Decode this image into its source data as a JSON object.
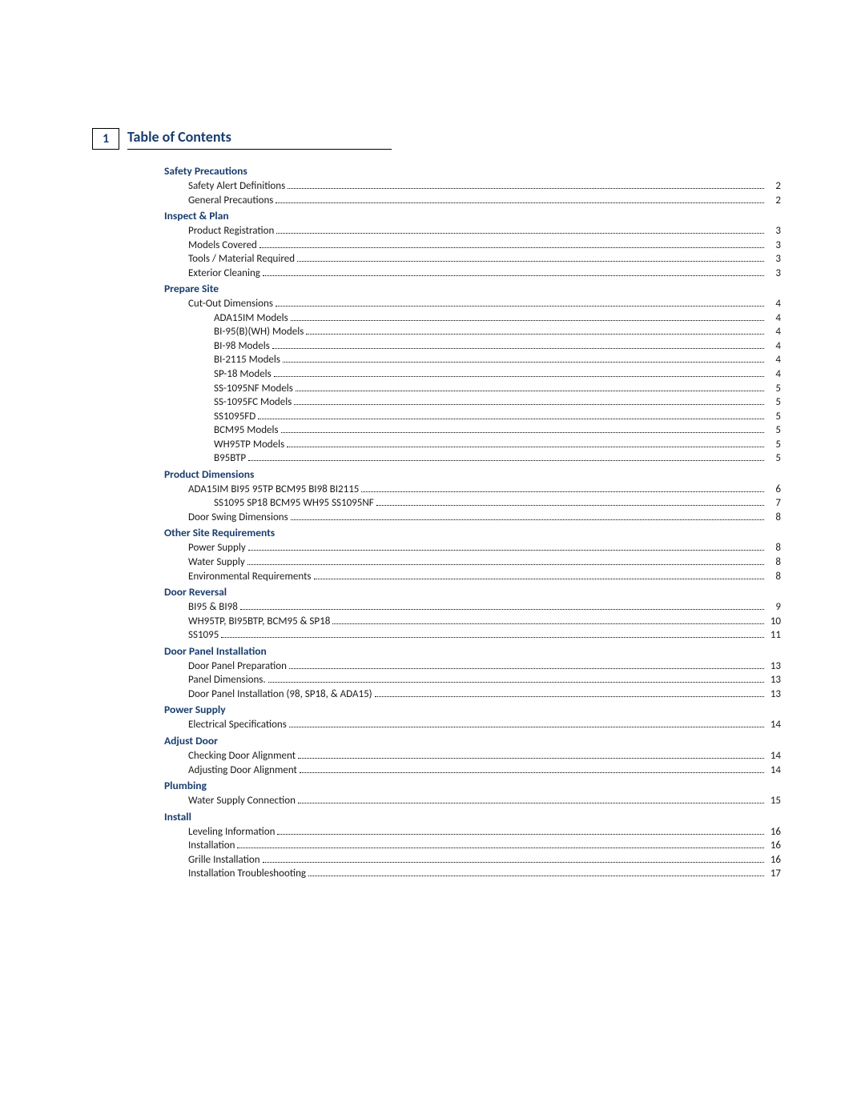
{
  "page_number": "1",
  "title": "Table of Contents",
  "colors": {
    "heading": "#1a3e6e",
    "text": "#1a1a1a",
    "dots": "#000000",
    "rule": "#000000",
    "background": "#ffffff"
  },
  "typography": {
    "title_fontsize_pt": 14,
    "section_fontsize_pt": 10,
    "entry_fontsize_pt": 9.5,
    "font_family": "Gill Sans"
  },
  "sections": [
    {
      "heading": "Safety Precautions",
      "entries": [
        {
          "label": "Safety Alert Definitions",
          "page": "2",
          "level": 1
        },
        {
          "label": "General Precautions",
          "page": "2",
          "level": 1
        }
      ]
    },
    {
      "heading": "Inspect & Plan",
      "entries": [
        {
          "label": "Product Registration",
          "page": "3",
          "level": 1
        },
        {
          "label": "Models Covered",
          "page": "3",
          "level": 1
        },
        {
          "label": "Tools / Material Required",
          "page": "3",
          "level": 1
        },
        {
          "label": "Exterior Cleaning",
          "page": "3",
          "level": 1
        }
      ]
    },
    {
      "heading": "Prepare Site",
      "entries": [
        {
          "label": "Cut-Out Dimensions",
          "page": "4",
          "level": 1
        },
        {
          "label": "ADA15IM Models",
          "page": "4",
          "level": 2
        },
        {
          "label": "BI-95(B)(WH) Models",
          "page": "4",
          "level": 2
        },
        {
          "label": "BI-98 Models",
          "page": "4",
          "level": 2
        },
        {
          "label": "BI-2115 Models",
          "page": "4",
          "level": 2
        },
        {
          "label": "SP-18 Models",
          "page": "4",
          "level": 2
        },
        {
          "label": "SS-1095NF Models",
          "page": "5",
          "level": 2
        },
        {
          "label": "SS-1095FC Models",
          "page": "5",
          "level": 2
        },
        {
          "label": "SS1095FD",
          "page": "5",
          "level": 2
        },
        {
          "label": "BCM95 Models",
          "page": "5",
          "level": 2
        },
        {
          "label": "WH95TP Models",
          "page": "5",
          "level": 2
        },
        {
          "label": "B95BTP",
          "page": "5",
          "level": 2
        }
      ]
    },
    {
      "heading": "Product Dimensions",
      "entries": [
        {
          "label": "ADA15IM BI95 95TP BCM95 BI98 BI2115",
          "page": "6",
          "level": 1
        },
        {
          "label": "SS1095 SP18 BCM95 WH95 SS1095NF",
          "page": "7",
          "level": 2
        },
        {
          "label": "Door Swing Dimensions",
          "page": "8",
          "level": 1
        }
      ]
    },
    {
      "heading": "Other Site Requirements",
      "entries": [
        {
          "label": "Power Supply",
          "page": "8",
          "level": 1
        },
        {
          "label": "Water Supply",
          "page": "8",
          "level": 1
        },
        {
          "label": "Environmental Requirements",
          "page": "8",
          "level": 1
        }
      ]
    },
    {
      "heading": "Door Reversal",
      "entries": [
        {
          "label": "BI95 & BI98",
          "page": "9",
          "level": 1
        },
        {
          "label": "WH95TP, BI95BTP, BCM95 & SP18",
          "page": "10",
          "level": 1
        },
        {
          "label": "SS1095",
          "page": "11",
          "level": 1
        }
      ]
    },
    {
      "heading": "Door Panel Installation",
      "entries": [
        {
          "label": "Door Panel Preparation",
          "page": "13",
          "level": 1
        },
        {
          "label": "Panel Dimensions.",
          "page": "13",
          "level": 1
        },
        {
          "label": "Door Panel Installation (98, SP18, & ADA15)",
          "page": "13",
          "level": 1
        }
      ]
    },
    {
      "heading": "Power Supply",
      "entries": [
        {
          "label": "Electrical Specifications",
          "page": "14",
          "level": 1
        }
      ]
    },
    {
      "heading": "Adjust Door",
      "entries": [
        {
          "label": "Checking Door Alignment",
          "page": "14",
          "level": 1
        },
        {
          "label": "Adjusting Door Alignment",
          "page": "14",
          "level": 1
        }
      ]
    },
    {
      "heading": "Plumbing",
      "entries": [
        {
          "label": "Water Supply Connection",
          "page": "15",
          "level": 1
        }
      ]
    },
    {
      "heading": "Install",
      "entries": [
        {
          "label": "Leveling Information",
          "page": "16",
          "level": 1
        },
        {
          "label": "Installation",
          "page": "16",
          "level": 1
        },
        {
          "label": "Grille Installation",
          "page": "16",
          "level": 1
        },
        {
          "label": "Installation Troubleshooting",
          "page": "17",
          "level": 1
        }
      ]
    }
  ]
}
